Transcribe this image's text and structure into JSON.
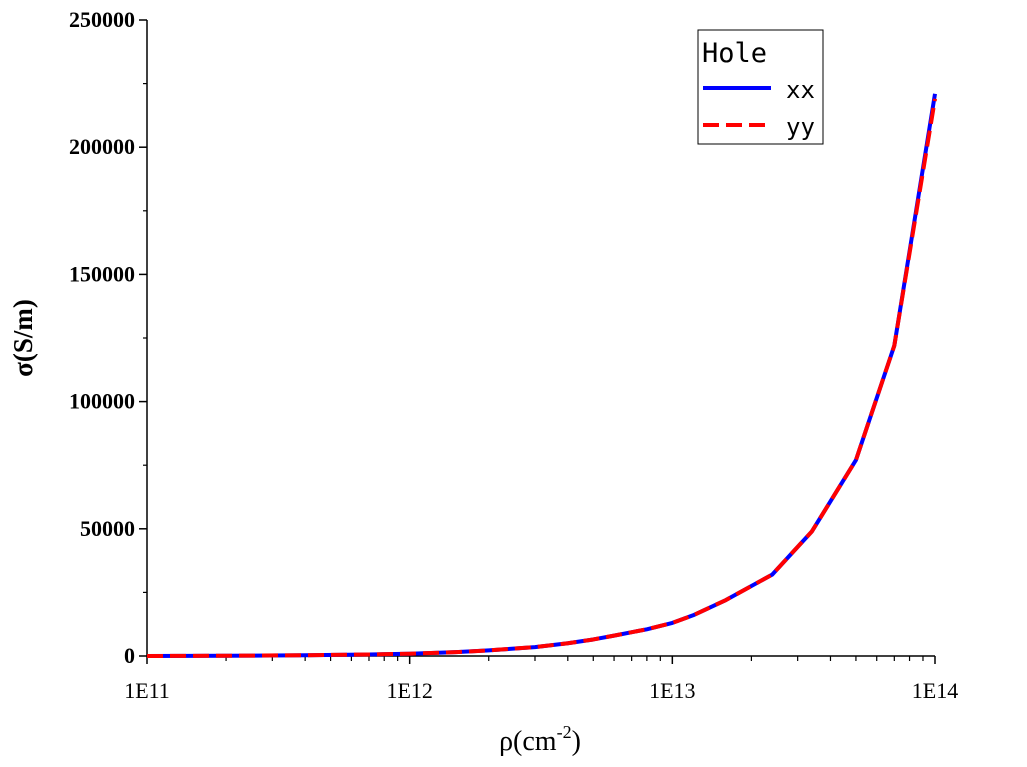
{
  "chart_data": {
    "type": "line",
    "xlabel": "ρ(cm",
    "xlabel_sup": "-2",
    "xlabel_end": ")",
    "ylabel": "σ(S/m)",
    "x_scale": "log",
    "xlim": [
      100000000000.0,
      100000000000000.0
    ],
    "ylim": [
      0,
      250000
    ],
    "x_ticks": [
      "1E11",
      "1E12",
      "1E13",
      "1E14"
    ],
    "y_ticks": [
      "0",
      "50000",
      "100000",
      "150000",
      "200000",
      "250000"
    ],
    "legend": {
      "title": "Hole",
      "placement": "top-right"
    },
    "x": [
      100000000000.0,
      200000000000.0,
      400000000000.0,
      700000000000.0,
      1000000000000.0,
      1500000000000.0,
      2000000000000.0,
      3000000000000.0,
      4000000000000.0,
      5000000000000.0,
      6000000000000.0,
      8000000000000.0,
      10000000000000.0,
      12000000000000.0,
      16000000000000.0,
      24000000000000.0,
      34000000000000.0,
      50000000000000.0,
      70000000000000.0,
      100000000000000.0
    ],
    "series": [
      {
        "name": "xx",
        "color": "#0000ff",
        "dash": "solid",
        "values": [
          0,
          100,
          300,
          600,
          900,
          1500,
          2200,
          3500,
          5000,
          6500,
          8000,
          10500,
          13000,
          16000,
          22000,
          32000,
          49000,
          77000,
          122000,
          221000
        ]
      },
      {
        "name": "yy",
        "color": "#ff0000",
        "dash": "dashed",
        "values": [
          0,
          100,
          300,
          600,
          900,
          1500,
          2200,
          3500,
          5000,
          6500,
          8000,
          10500,
          13000,
          16000,
          22000,
          32000,
          49000,
          77000,
          122000,
          219000
        ]
      }
    ]
  }
}
